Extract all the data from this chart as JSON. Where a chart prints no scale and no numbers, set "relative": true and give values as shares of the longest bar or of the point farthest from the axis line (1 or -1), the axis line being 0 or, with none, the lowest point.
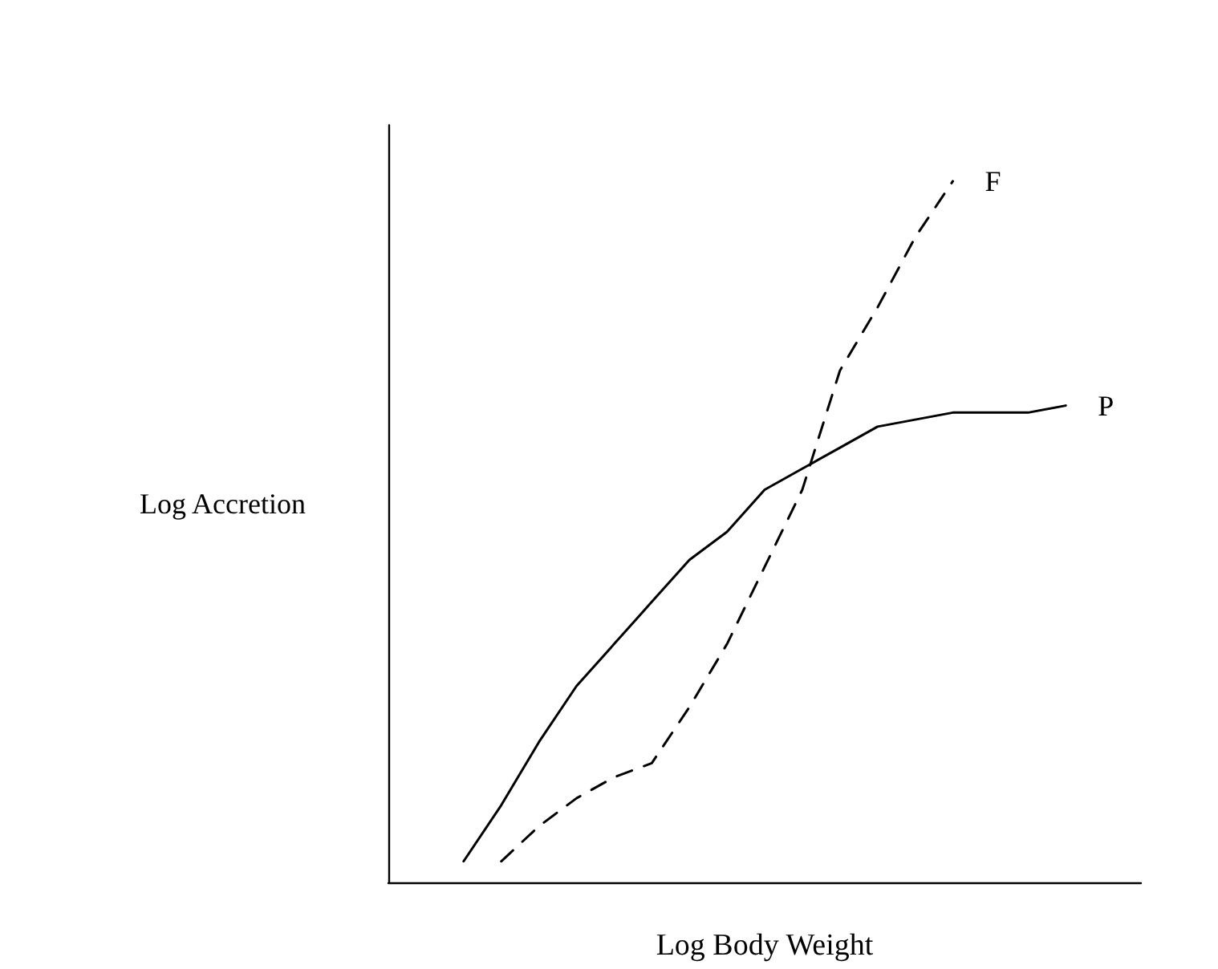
{
  "chart_data": {
    "type": "line",
    "xlabel": "Log Body Weight",
    "ylabel": "Log Accretion",
    "relative": true,
    "grid": false,
    "legend": false,
    "marker": "none",
    "categories": [
      null,
      null,
      null,
      null,
      null,
      null,
      null,
      null,
      null,
      null,
      null,
      null,
      null,
      null,
      null,
      null,
      null,
      null,
      null,
      null,
      null
    ],
    "series": [
      {
        "name": "P",
        "color": "#000000",
        "line_style": "solid",
        "values": [
          null,
          null,
          0.03,
          0.11,
          0.2,
          0.28,
          0.34,
          0.4,
          0.46,
          0.5,
          0.56,
          0.59,
          0.62,
          0.65,
          0.66,
          0.67,
          0.67,
          0.67,
          0.68,
          null,
          null
        ]
      },
      {
        "name": "F",
        "color": "#000000",
        "line_style": "dashed",
        "values": [
          null,
          null,
          null,
          0.03,
          0.08,
          0.12,
          0.15,
          0.17,
          0.25,
          0.34,
          0.45,
          0.56,
          0.73,
          0.82,
          0.92,
          1.0,
          null,
          null,
          null,
          null,
          null
        ]
      }
    ]
  }
}
